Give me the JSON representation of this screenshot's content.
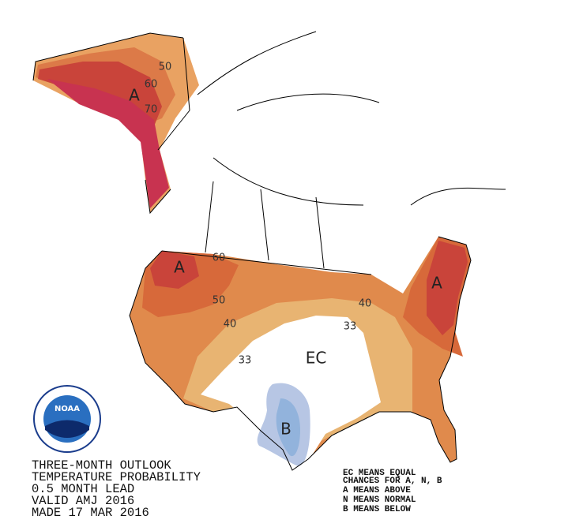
{
  "map": {
    "logo": "NOAA",
    "title_lines": [
      "THREE-MONTH OUTLOOK",
      "TEMPERATURE PROBABILITY",
      "0.5 MONTH LEAD",
      "VALID AMJ 2016",
      "MADE 17 MAR 2016"
    ],
    "legend_lines": [
      "EC MEANS EQUAL",
      "CHANCES FOR A, N, B",
      "A MEANS ABOVE",
      "N MEANS NORMAL",
      "B MEANS BELOW"
    ],
    "labels": [
      "50",
      "60",
      "70",
      "A",
      "60",
      "A",
      "50",
      "40",
      "33",
      "EC",
      "40",
      "33",
      "A",
      "B"
    ]
  }
}
